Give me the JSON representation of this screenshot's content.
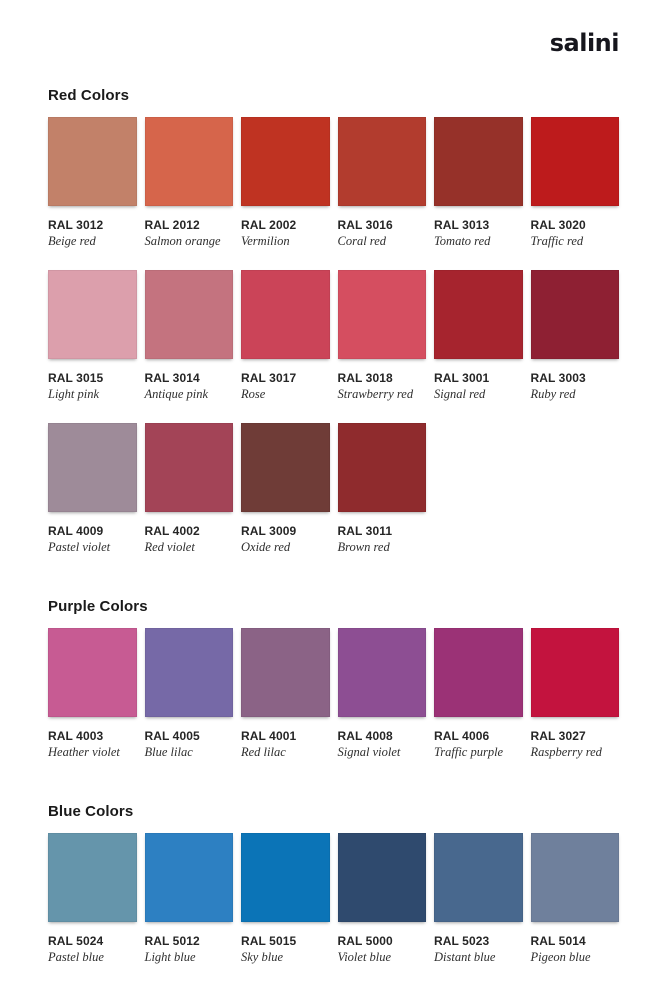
{
  "logo": {
    "text": "salini",
    "color": "#16161d"
  },
  "sections": [
    {
      "title": "Red Colors",
      "swatches": [
        {
          "code": "RAL 3012",
          "name": "Beige red",
          "hex": "#C28169"
        },
        {
          "code": "RAL 2012",
          "name": "Salmon orange",
          "hex": "#D6654B"
        },
        {
          "code": "RAL 2002",
          "name": "Vermilion",
          "hex": "#BF3322"
        },
        {
          "code": "RAL 3016",
          "name": "Coral red",
          "hex": "#B23C2E"
        },
        {
          "code": "RAL 3013",
          "name": "Tomato red",
          "hex": "#963129"
        },
        {
          "code": "RAL 3020",
          "name": "Traffic red",
          "hex": "#BD1B1C"
        },
        {
          "code": "RAL 3015",
          "name": "Light pink",
          "hex": "#DC9FAC"
        },
        {
          "code": "RAL 3014",
          "name": "Antique pink",
          "hex": "#C4737F"
        },
        {
          "code": "RAL 3017",
          "name": "Rose",
          "hex": "#CB4458"
        },
        {
          "code": "RAL 3018",
          "name": "Strawberry red",
          "hex": "#D54E60"
        },
        {
          "code": "RAL 3001",
          "name": "Signal red",
          "hex": "#A6242E"
        },
        {
          "code": "RAL 3003",
          "name": "Ruby red",
          "hex": "#8E2033"
        },
        {
          "code": "RAL 4009",
          "name": "Pastel violet",
          "hex": "#9E8B99"
        },
        {
          "code": "RAL 4002",
          "name": "Red violet",
          "hex": "#A34457"
        },
        {
          "code": "RAL 3009",
          "name": "Oxide red",
          "hex": "#6F3C37"
        },
        {
          "code": "RAL 3011",
          "name": "Brown red",
          "hex": "#8F2B2D"
        }
      ]
    },
    {
      "title": "Purple Colors",
      "swatches": [
        {
          "code": "RAL 4003",
          "name": "Heather violet",
          "hex": "#C75B93"
        },
        {
          "code": "RAL 4005",
          "name": "Blue lilac",
          "hex": "#7669A7"
        },
        {
          "code": "RAL 4001",
          "name": "Red lilac",
          "hex": "#8B6386"
        },
        {
          "code": "RAL 4008",
          "name": "Signal violet",
          "hex": "#8D4E93"
        },
        {
          "code": "RAL 4006",
          "name": "Traffic purple",
          "hex": "#9B3276"
        },
        {
          "code": "RAL 3027",
          "name": "Raspberry red",
          "hex": "#C3133E"
        }
      ]
    },
    {
      "title": "Blue Colors",
      "swatches": [
        {
          "code": "RAL 5024",
          "name": "Pastel blue",
          "hex": "#6595AB"
        },
        {
          "code": "RAL 5012",
          "name": "Light blue",
          "hex": "#2D80C2"
        },
        {
          "code": "RAL 5015",
          "name": "Sky blue",
          "hex": "#0B74B7"
        },
        {
          "code": "RAL 5000",
          "name": "Violet blue",
          "hex": "#2F4A6E"
        },
        {
          "code": "RAL 5023",
          "name": "Distant blue",
          "hex": "#48688E"
        },
        {
          "code": "RAL 5014",
          "name": "Pigeon blue",
          "hex": "#6F809C"
        }
      ]
    }
  ]
}
